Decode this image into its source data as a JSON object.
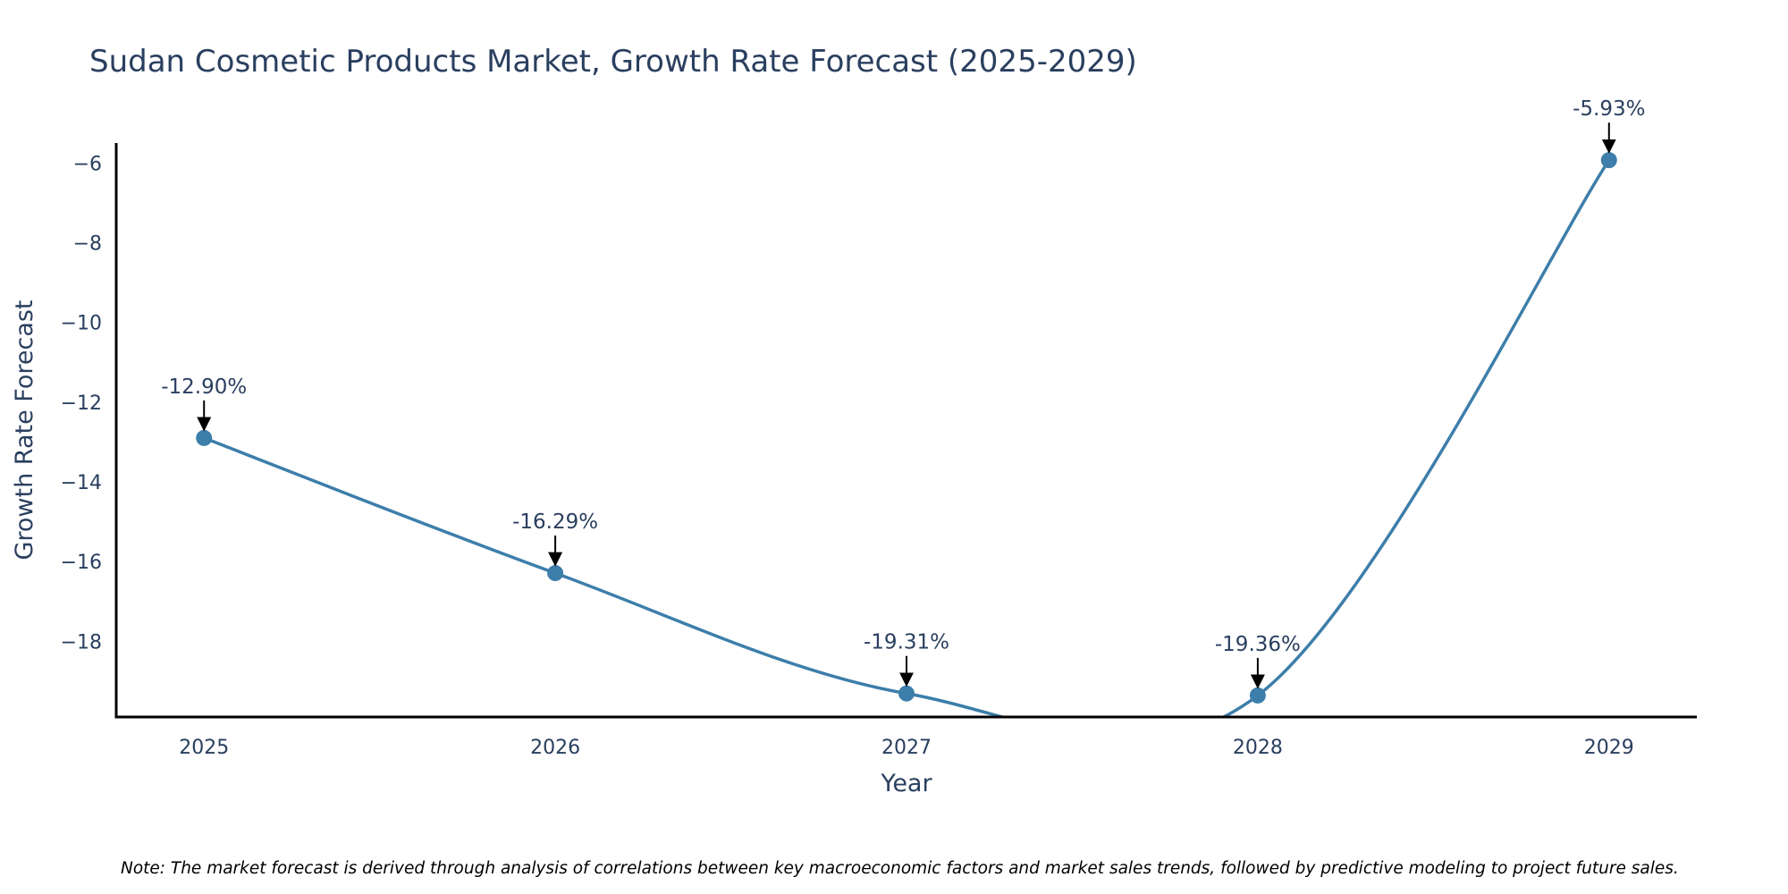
{
  "chart_data": {
    "type": "line",
    "title": "Sudan Cosmetic Products Market, Growth Rate Forecast (2025-2029)",
    "xlabel": "Year",
    "ylabel": "Growth Rate Forecast",
    "categories": [
      "2025",
      "2026",
      "2027",
      "2028",
      "2029"
    ],
    "series": [
      {
        "name": "Growth Rate Forecast",
        "values": [
          -12.9,
          -16.29,
          -19.31,
          -19.36,
          -5.93
        ]
      }
    ],
    "data_labels": [
      "-12.90%",
      "-16.29%",
      "-19.31%",
      "-19.36%",
      "-5.93%"
    ],
    "y_ticks": [
      -6,
      -8,
      -10,
      -12,
      -14,
      -16,
      -18
    ],
    "y_tick_labels": [
      "−6",
      "−8",
      "−10",
      "−12",
      "−14",
      "−16",
      "−18"
    ],
    "ylim": [
      -19.9,
      -5.5
    ],
    "xlim": [
      -0.25,
      4.25
    ],
    "grid": false,
    "line_shape": "spline",
    "line_color": "#3d7eaa",
    "note": "Note: The market forecast is derived through analysis of correlations between key macroeconomic factors and market sales trends, followed by predictive modeling to project future sales."
  }
}
